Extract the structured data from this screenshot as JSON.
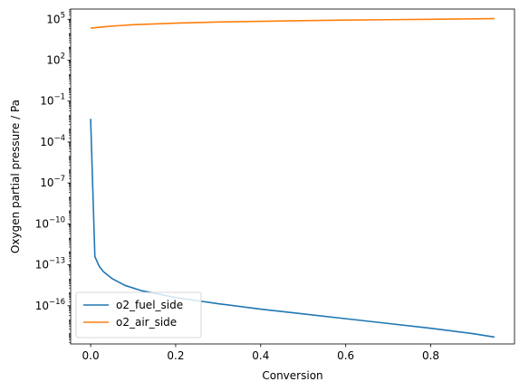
{
  "chart_data": {
    "type": "line",
    "title": "",
    "xlabel": "Conversion",
    "ylabel": "Oxygen partial pressure / Pa",
    "yscale": "log",
    "xlim": [
      -0.047,
      0.997
    ],
    "ylim_log10": [
      -18.8,
      5.75
    ],
    "x_ticks": [
      {
        "value": 0.0,
        "label": "0.0"
      },
      {
        "value": 0.2,
        "label": "0.2"
      },
      {
        "value": 0.4,
        "label": "0.4"
      },
      {
        "value": 0.6,
        "label": "0.6"
      },
      {
        "value": 0.8,
        "label": "0.8"
      }
    ],
    "y_ticks": [
      {
        "value": 5,
        "base": "10",
        "exp": "5"
      },
      {
        "value": 2,
        "base": "10",
        "exp": "2"
      },
      {
        "value": -1,
        "base": "10",
        "exp": "−1"
      },
      {
        "value": -4,
        "base": "10",
        "exp": "−4"
      },
      {
        "value": -7,
        "base": "10",
        "exp": "−7"
      },
      {
        "value": -10,
        "base": "10",
        "exp": "−10"
      },
      {
        "value": -13,
        "base": "10",
        "exp": "−13"
      },
      {
        "value": -16,
        "base": "10",
        "exp": "−16"
      }
    ],
    "grid": false,
    "legend": "lower-left",
    "series": [
      {
        "name": "o2_fuel_side",
        "color": "#1f77b4",
        "x": [
          0.0,
          0.01,
          0.02,
          0.03,
          0.05,
          0.08,
          0.12,
          0.2,
          0.3,
          0.4,
          0.5,
          0.6,
          0.7,
          0.8,
          0.9,
          0.95
        ],
        "y_log10": [
          -2.3,
          -12.4,
          -13.1,
          -13.5,
          -14.0,
          -14.5,
          -14.9,
          -15.4,
          -15.85,
          -16.25,
          -16.6,
          -16.95,
          -17.3,
          -17.65,
          -18.05,
          -18.3
        ]
      },
      {
        "name": "o2_air_side",
        "color": "#ff7f0e",
        "x": [
          0.0,
          0.05,
          0.1,
          0.2,
          0.3,
          0.4,
          0.5,
          0.6,
          0.7,
          0.8,
          0.9,
          0.95
        ],
        "y_log10": [
          4.35,
          4.5,
          4.6,
          4.72,
          4.8,
          4.85,
          4.9,
          4.94,
          4.97,
          5.0,
          5.03,
          5.05
        ]
      }
    ]
  }
}
